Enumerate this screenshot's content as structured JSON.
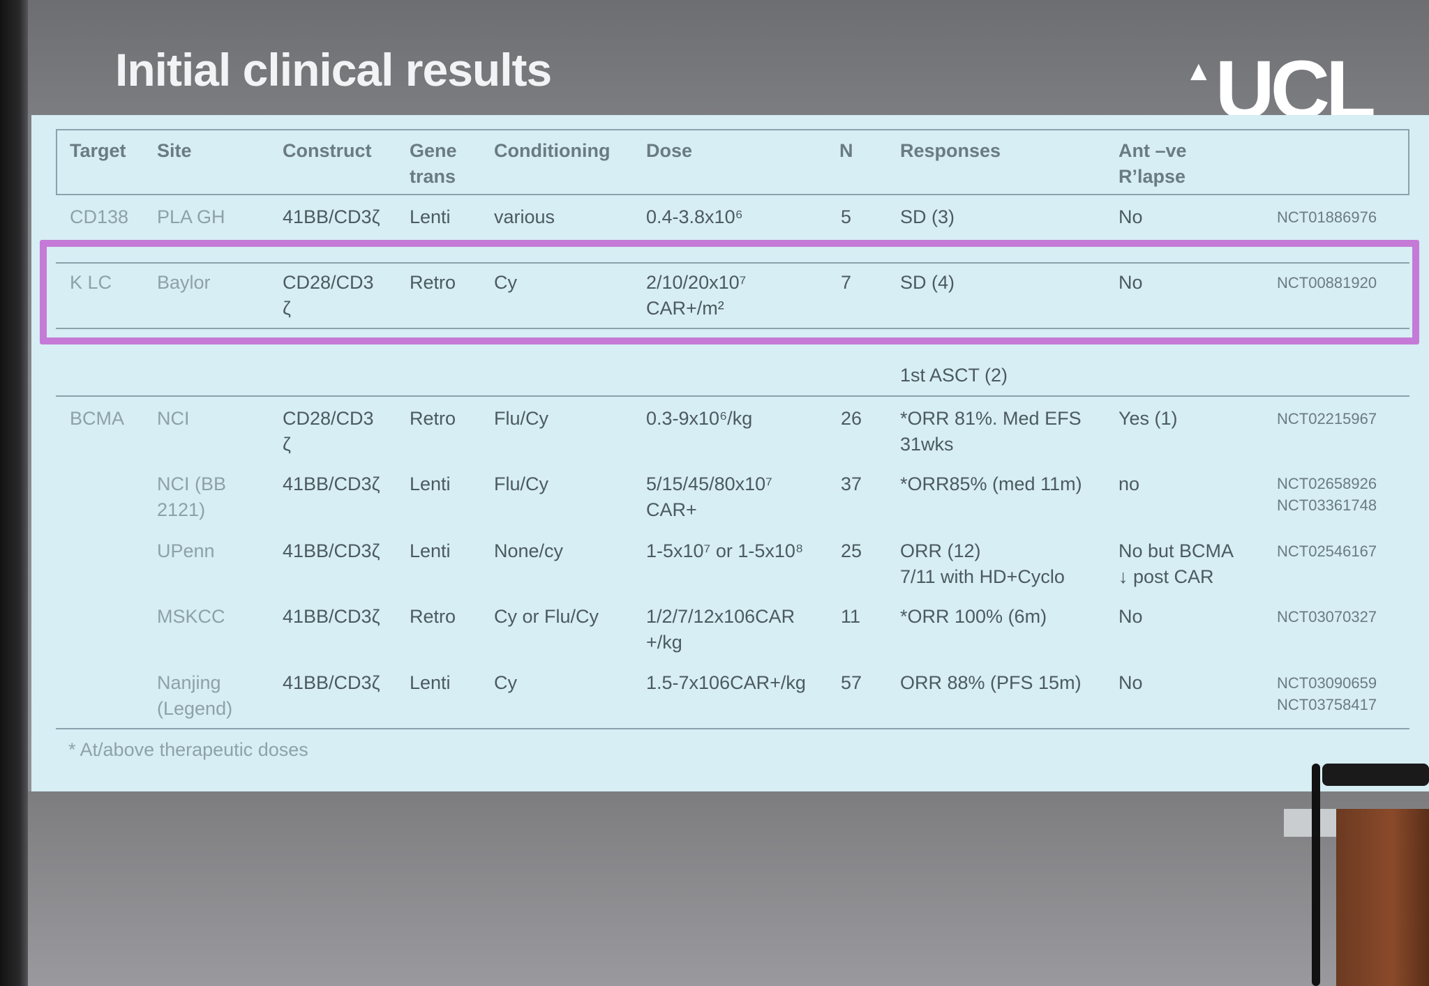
{
  "slide": {
    "title": "Initial clinical results",
    "logo": "UCL",
    "footnote": "* At/above therapeutic doses"
  },
  "table": {
    "headers": [
      "Target",
      "Site",
      "Construct",
      "Gene\ntrans",
      "Conditioning",
      "Dose",
      "N",
      "Responses",
      "Ant –ve\nR’lapse"
    ],
    "rows": [
      {
        "target": "CD138",
        "site": "PLA GH",
        "construct": "41BB/CD3ζ",
        "gene": "Lenti",
        "cond": "various",
        "dose": "0.4-3.8x10⁶",
        "n": "5",
        "resp": "SD (3)",
        "relapse": "No",
        "nct": "NCT01886976"
      },
      {
        "target": "K LC",
        "site": "Baylor",
        "construct": "CD28/CD3\nζ",
        "gene": "Retro",
        "cond": "Cy",
        "dose": "2/10/20x10⁷\nCAR+/m²",
        "n": "7",
        "resp": "SD (4)",
        "relapse": "No",
        "nct": "NCT00881920"
      },
      {
        "resp": "1st ASCT (2)"
      },
      {
        "target": "BCMA",
        "site": "NCI",
        "construct": "CD28/CD3\nζ",
        "gene": "Retro",
        "cond": "Flu/Cy",
        "dose": "0.3-9x10⁶/kg",
        "n": "26",
        "resp": "*ORR 81%. Med EFS\n31wks",
        "relapse": "Yes (1)",
        "nct": "NCT02215967"
      },
      {
        "site": "NCI (BB\n2121)",
        "construct": "41BB/CD3ζ",
        "gene": "Lenti",
        "cond": "Flu/Cy",
        "dose": "5/15/45/80x10⁷\nCAR+",
        "n": "37",
        "resp": "*ORR85% (med 11m)",
        "relapse": "no",
        "nct": "NCT02658926\nNCT03361748"
      },
      {
        "site": "UPenn",
        "construct": "41BB/CD3ζ",
        "gene": "Lenti",
        "cond": "None/cy",
        "dose": "1-5x10⁷ or 1-5x10⁸",
        "n": "25",
        "resp": "ORR (12)\n7/11 with HD+Cyclo",
        "relapse": "No but BCMA\n↓ post CAR",
        "nct": "NCT02546167"
      },
      {
        "site": "MSKCC",
        "construct": "41BB/CD3ζ",
        "gene": "Retro",
        "cond": "Cy or Flu/Cy",
        "dose": "1/2/7/12x106CAR\n+/kg",
        "n": "11",
        "resp": "*ORR 100% (6m)",
        "relapse": "No",
        "nct": "NCT03070327"
      },
      {
        "site": "Nanjing\n(Legend)",
        "construct": "41BB/CD3ζ",
        "gene": "Lenti",
        "cond": "Cy",
        "dose": "1.5-7x106CAR+/kg",
        "n": "57",
        "resp": "ORR 88% (PFS 15m)",
        "relapse": "No",
        "nct": "NCT03090659\nNCT03758417"
      }
    ]
  },
  "colors": {
    "highlight": "#c47ad6",
    "panel": "#d6eef4"
  }
}
